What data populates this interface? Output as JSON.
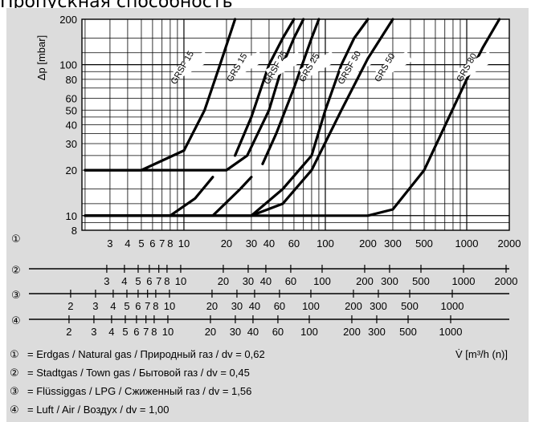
{
  "page": {
    "title": "Пропускная способность"
  },
  "chart_data": {
    "type": "line",
    "yscale": "log",
    "xscale": "log",
    "ylabel": "Δp [mbar]",
    "xlabel": "V̇ [m³/h (n)]",
    "ylim": [
      8,
      200
    ],
    "xlim": [
      1.9,
      2000
    ],
    "y_ticks": [
      200,
      100,
      80,
      60,
      50,
      40,
      30,
      20,
      10,
      8
    ],
    "series": [
      {
        "name": "GRSF 15",
        "x": [
          2,
          5,
          10,
          14,
          18,
          23
        ],
        "y": [
          20,
          20,
          27,
          50,
          100,
          200
        ]
      },
      {
        "name": "GRS 15",
        "x": [
          23,
          30,
          40,
          50,
          60
        ],
        "y": [
          25,
          45,
          100,
          150,
          200
        ]
      },
      {
        "name": "GRSF 25",
        "x": [
          2,
          10,
          20,
          28,
          40,
          50,
          60,
          70
        ],
        "y": [
          20,
          20,
          20,
          25,
          50,
          100,
          150,
          200
        ]
      },
      {
        "name": "GRS 25",
        "x": [
          36,
          45,
          60,
          80,
          90
        ],
        "y": [
          22,
          35,
          70,
          150,
          200
        ]
      },
      {
        "name": "GRSF 50",
        "x": [
          2,
          20,
          30,
          50,
          80,
          100,
          130,
          160,
          200
        ],
        "y": [
          10,
          10,
          10,
          15,
          25,
          50,
          100,
          150,
          200
        ]
      },
      {
        "name": "GRS 50",
        "x": [
          30,
          50,
          80,
          130,
          200,
          300
        ],
        "y": [
          10,
          12,
          20,
          50,
          110,
          200
        ]
      },
      {
        "name": "GRS 80",
        "x": [
          2,
          200,
          300,
          500,
          1000,
          1300,
          1700
        ],
        "y": [
          10,
          10,
          11,
          20,
          80,
          130,
          200
        ]
      },
      {
        "name": "",
        "x": [
          2,
          8,
          12,
          16
        ],
        "y": [
          10,
          10,
          13,
          18
        ]
      },
      {
        "name": "",
        "x": [
          2,
          16,
          25,
          30
        ],
        "y": [
          10,
          10,
          15,
          18
        ]
      }
    ],
    "scales": [
      {
        "marker": "①",
        "x_labels": [
          "3",
          "4",
          "5",
          "6",
          "7",
          "8",
          "10",
          "20",
          "30",
          "40",
          "60",
          "100",
          "200",
          "300",
          "500",
          "1000",
          "2000"
        ]
      },
      {
        "marker": "②",
        "x_labels": [
          "3",
          "4",
          "5",
          "6",
          "7",
          "8",
          "10",
          "20",
          "30",
          "40",
          "60",
          "100",
          "200",
          "300",
          "500",
          "1000",
          "2000"
        ]
      },
      {
        "marker": "③",
        "x_labels": [
          "2",
          "3",
          "4",
          "5",
          "6",
          "7",
          "8",
          "10",
          "20",
          "30",
          "40",
          "60",
          "100",
          "200",
          "300",
          "500",
          "1000"
        ]
      },
      {
        "marker": "④",
        "x_labels": [
          "2",
          "3",
          "4",
          "5",
          "6",
          "7",
          "8",
          "10",
          "20",
          "30",
          "40",
          "60",
          "100",
          "200",
          "300",
          "500",
          "1000"
        ]
      }
    ],
    "legend": [
      {
        "marker": "①",
        "text": "= Erdgas / Natural gas / Природный газ / dv = 0,62"
      },
      {
        "marker": "②",
        "text": "= Stadtgas / Town gas / Бытовой газ / dv = 0,45"
      },
      {
        "marker": "③",
        "text": "= Flüssiggas / LPG / Сжиженный газ / dv = 1,56"
      },
      {
        "marker": "④",
        "text": "= Luft / Air / Воздух / dv = 1,00"
      }
    ]
  }
}
